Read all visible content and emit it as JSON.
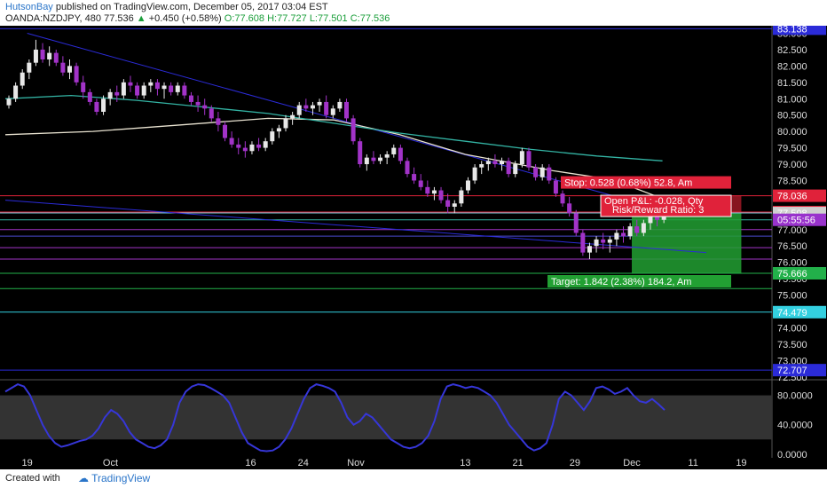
{
  "header": {
    "publisher": "HutsonBay",
    "published_text": "published on TradingView.com, December 05, 2017 03:04 EST",
    "symbol": "OANDA:NZDJPY, 480",
    "last": "77.536",
    "change": "+0.450 (+0.58%)",
    "open": "O:77.608",
    "high": "H:77.727",
    "low": "L:77.501",
    "close": "C:77.536"
  },
  "footer": {
    "created_with": "Created with",
    "brand": "TradingView"
  },
  "colors": {
    "up": "#e8e8e8",
    "down": "#a233c8",
    "stoch": "#3636d8",
    "ma_white": "#e8e2d0",
    "ma_teal": "#33b3a3"
  },
  "chart_data": {
    "type": "candlestick",
    "price_axis": {
      "ticks": [
        83.0,
        82.5,
        82.0,
        81.5,
        81.0,
        80.5,
        80.0,
        79.5,
        79.0,
        78.5,
        78.0,
        77.5,
        77.0,
        76.5,
        76.0,
        75.5,
        75.0,
        74.5,
        74.0,
        73.5,
        73.0,
        72.5
      ],
      "tick_labels": [
        "83.000",
        "82.500",
        "82.000",
        "81.500",
        "81.000",
        "80.500",
        "80.000",
        "79.500",
        "79.000",
        "78.500",
        "78.000",
        "77.500",
        "77.000",
        "76.500",
        "76.000",
        "75.500",
        "75.000",
        "74.500",
        "74.000",
        "73.500",
        "73.000",
        "72.500"
      ],
      "ylim": [
        72.44,
        83.23
      ]
    },
    "date_ticks": [
      {
        "label": "19",
        "x": 5
      },
      {
        "label": "Oct",
        "x": 24
      },
      {
        "label": "16",
        "x": 56
      },
      {
        "label": "24",
        "x": 68
      },
      {
        "label": "Nov",
        "x": 80
      },
      {
        "label": "13",
        "x": 105
      },
      {
        "label": "21",
        "x": 117
      },
      {
        "label": "29",
        "x": 130
      },
      {
        "label": "Dec",
        "x": 143
      },
      {
        "label": "11",
        "x": 157
      },
      {
        "label": "19",
        "x": 168
      }
    ],
    "xlim": [
      0,
      175
    ],
    "hlines": [
      {
        "value": 83.138,
        "label": "83.138",
        "color": "#2b2bd8",
        "label_bg": "#2b2bd8"
      },
      {
        "value": 78.036,
        "label": "78.036",
        "color": "#e0223a",
        "label_bg": "#e0223a"
      },
      {
        "value": 77.536,
        "label": "77.536",
        "color": "#e0223a",
        "label_bg": "#e0223a"
      },
      {
        "value": 77.508,
        "label": "77.508",
        "color": "#7ad0e0",
        "label_bg": "#cfcfcf"
      },
      {
        "value": 75.666,
        "label": "75.666",
        "color": "#22b04a",
        "label_bg": "#22b04a"
      },
      {
        "value": 74.479,
        "label": "74.479",
        "color": "#33d0e0",
        "label_bg": "#33d0e0"
      },
      {
        "value": 72.707,
        "label": "72.707",
        "color": "#2b2bd8",
        "label_bg": "#2b2bd8"
      }
    ],
    "extra_lines": [
      {
        "value": 77.3,
        "color": "#33b3a3"
      },
      {
        "value": 77.0,
        "color": "#a233c8"
      },
      {
        "value": 76.45,
        "color": "#a233c8"
      },
      {
        "value": 76.1,
        "color": "#a233c8"
      },
      {
        "value": 75.2,
        "color": "#22b04a"
      },
      {
        "value": 76.8,
        "color": "#4a4ad0"
      }
    ],
    "time_label": "05:55:56",
    "position": {
      "entry": 77.508,
      "stop": 78.036,
      "target": 75.666,
      "x_start": 143,
      "x_end": 168,
      "stop_text": "Stop: 0.528 (0.68%) 52.8, Am",
      "target_text": "Target: 1.842 (2.38%) 184.2, Am",
      "pnl_text": "Open P&L: -0.028, Qty",
      "rr_text": "Risk/Reward Ratio: 3"
    },
    "trendlines": [
      {
        "x1": 5,
        "y1": 83.0,
        "x2": 145,
        "y2": 77.8,
        "color": "#2b2bd8"
      },
      {
        "x1": 0,
        "y1": 77.9,
        "x2": 160,
        "y2": 76.3,
        "color": "#2b2bd8"
      }
    ],
    "moving_averages": [
      {
        "name": "",
        "color": "#e8e2d0",
        "points": [
          [
            0,
            79.9
          ],
          [
            20,
            80.0
          ],
          [
            40,
            80.2
          ],
          [
            60,
            80.4
          ],
          [
            75,
            80.35
          ],
          [
            90,
            79.9
          ],
          [
            105,
            79.3
          ],
          [
            125,
            78.8
          ],
          [
            135,
            78.6
          ],
          [
            143,
            78.3
          ],
          [
            150,
            77.95
          ]
        ]
      },
      {
        "name": "",
        "color": "#33b3a3",
        "points": [
          [
            0,
            81.0
          ],
          [
            15,
            81.1
          ],
          [
            30,
            80.95
          ],
          [
            45,
            80.75
          ],
          [
            60,
            80.55
          ],
          [
            75,
            80.25
          ],
          [
            90,
            79.95
          ],
          [
            105,
            79.7
          ],
          [
            120,
            79.45
          ],
          [
            135,
            79.25
          ],
          [
            150,
            79.1
          ]
        ]
      }
    ],
    "candles": [
      [
        0,
        80.8,
        81.1,
        80.7,
        81.0
      ],
      [
        1,
        81.0,
        81.5,
        80.9,
        81.4
      ],
      [
        2,
        81.4,
        81.9,
        81.3,
        81.8
      ],
      [
        3,
        81.8,
        82.2,
        81.6,
        82.1
      ],
      [
        4,
        82.1,
        82.8,
        82.0,
        82.5
      ],
      [
        5,
        82.5,
        82.7,
        82.1,
        82.2
      ],
      [
        6,
        82.2,
        82.6,
        82.0,
        82.4
      ],
      [
        7,
        82.4,
        82.5,
        82.0,
        82.1
      ],
      [
        8,
        82.1,
        82.3,
        81.7,
        81.8
      ],
      [
        9,
        81.8,
        82.2,
        81.6,
        82.0
      ],
      [
        10,
        82.0,
        82.1,
        81.4,
        81.5
      ],
      [
        11,
        81.5,
        81.7,
        81.0,
        81.2
      ],
      [
        12,
        81.2,
        81.3,
        80.8,
        80.9
      ],
      [
        13,
        80.9,
        81.0,
        80.5,
        80.6
      ],
      [
        14,
        80.6,
        81.1,
        80.5,
        81.0
      ],
      [
        15,
        81.0,
        81.3,
        80.8,
        81.2
      ],
      [
        16,
        81.2,
        81.4,
        80.9,
        81.1
      ],
      [
        17,
        81.1,
        81.6,
        81.0,
        81.5
      ],
      [
        18,
        81.5,
        81.7,
        81.2,
        81.4
      ],
      [
        19,
        81.4,
        81.5,
        81.0,
        81.1
      ],
      [
        20,
        81.1,
        81.5,
        81.0,
        81.4
      ],
      [
        21,
        81.4,
        81.6,
        81.2,
        81.5
      ],
      [
        22,
        81.5,
        81.6,
        81.1,
        81.3
      ],
      [
        23,
        81.3,
        81.5,
        81.0,
        81.4
      ],
      [
        24,
        81.4,
        81.5,
        81.1,
        81.2
      ],
      [
        25,
        81.2,
        81.5,
        81.1,
        81.4
      ],
      [
        26,
        81.4,
        81.5,
        81.0,
        81.1
      ],
      [
        27,
        81.1,
        81.2,
        80.8,
        80.9
      ],
      [
        28,
        80.9,
        81.1,
        80.6,
        80.8
      ],
      [
        29,
        80.8,
        81.0,
        80.5,
        80.7
      ],
      [
        30,
        80.7,
        80.8,
        80.3,
        80.4
      ],
      [
        31,
        80.4,
        80.6,
        80.0,
        80.2
      ],
      [
        32,
        80.2,
        80.3,
        79.7,
        79.8
      ],
      [
        33,
        79.8,
        80.0,
        79.5,
        79.6
      ],
      [
        34,
        79.6,
        79.8,
        79.3,
        79.5
      ],
      [
        35,
        79.5,
        79.7,
        79.2,
        79.4
      ],
      [
        36,
        79.4,
        79.7,
        79.3,
        79.6
      ],
      [
        37,
        79.6,
        79.8,
        79.4,
        79.5
      ],
      [
        38,
        79.5,
        79.8,
        79.4,
        79.7
      ],
      [
        39,
        79.7,
        80.1,
        79.6,
        80.0
      ],
      [
        40,
        80.0,
        80.2,
        79.8,
        80.1
      ],
      [
        41,
        80.1,
        80.5,
        80.0,
        80.4
      ],
      [
        42,
        80.4,
        80.6,
        80.2,
        80.5
      ],
      [
        43,
        80.5,
        80.9,
        80.4,
        80.8
      ],
      [
        44,
        80.8,
        81.0,
        80.6,
        80.7
      ],
      [
        45,
        80.7,
        80.9,
        80.5,
        80.8
      ],
      [
        46,
        80.8,
        81.0,
        80.6,
        80.9
      ],
      [
        47,
        80.9,
        81.1,
        80.4,
        80.5
      ],
      [
        48,
        80.5,
        80.8,
        80.4,
        80.7
      ],
      [
        49,
        80.7,
        81.0,
        80.6,
        80.9
      ],
      [
        50,
        80.9,
        81.0,
        80.3,
        80.4
      ],
      [
        51,
        80.4,
        80.5,
        79.6,
        79.7
      ],
      [
        52,
        79.7,
        79.8,
        78.9,
        79.0
      ],
      [
        53,
        79.0,
        79.3,
        78.8,
        79.2
      ],
      [
        54,
        79.2,
        79.4,
        79.0,
        79.1
      ],
      [
        55,
        79.1,
        79.3,
        79.0,
        79.2
      ],
      [
        56,
        79.2,
        79.4,
        79.0,
        79.3
      ],
      [
        57,
        79.3,
        79.6,
        79.2,
        79.5
      ],
      [
        58,
        79.5,
        79.6,
        79.0,
        79.1
      ],
      [
        59,
        79.1,
        79.2,
        78.6,
        78.7
      ],
      [
        60,
        78.7,
        78.9,
        78.4,
        78.5
      ],
      [
        61,
        78.5,
        78.7,
        78.2,
        78.3
      ],
      [
        62,
        78.3,
        78.5,
        78.0,
        78.1
      ],
      [
        63,
        78.1,
        78.3,
        77.9,
        78.2
      ],
      [
        64,
        78.2,
        78.3,
        77.8,
        77.9
      ],
      [
        65,
        77.9,
        78.1,
        77.5,
        77.7
      ],
      [
        66,
        77.7,
        77.9,
        77.5,
        77.8
      ],
      [
        67,
        77.8,
        78.3,
        77.7,
        78.2
      ],
      [
        68,
        78.2,
        78.6,
        78.1,
        78.5
      ],
      [
        69,
        78.5,
        79.0,
        78.4,
        78.9
      ],
      [
        70,
        78.9,
        79.1,
        78.7,
        79.0
      ],
      [
        71,
        79.0,
        79.2,
        78.8,
        79.1
      ],
      [
        72,
        79.1,
        79.3,
        78.9,
        79.0
      ],
      [
        73,
        79.0,
        79.2,
        78.8,
        79.1
      ],
      [
        74,
        79.1,
        79.2,
        78.6,
        78.7
      ],
      [
        75,
        78.7,
        79.1,
        78.6,
        79.0
      ],
      [
        76,
        79.0,
        79.5,
        78.9,
        79.4
      ],
      [
        77,
        79.4,
        79.5,
        78.8,
        78.9
      ],
      [
        78,
        78.9,
        79.0,
        78.5,
        78.6
      ],
      [
        79,
        78.6,
        79.0,
        78.5,
        78.9
      ],
      [
        80,
        78.9,
        79.0,
        78.4,
        78.5
      ],
      [
        81,
        78.5,
        78.6,
        78.0,
        78.1
      ],
      [
        82,
        78.1,
        78.2,
        77.7,
        77.8
      ],
      [
        83,
        77.8,
        78.0,
        77.4,
        77.5
      ],
      [
        84,
        77.5,
        77.6,
        76.8,
        76.9
      ],
      [
        85,
        76.9,
        77.0,
        76.2,
        76.3
      ],
      [
        86,
        76.3,
        76.6,
        76.1,
        76.5
      ],
      [
        87,
        76.5,
        76.8,
        76.3,
        76.7
      ],
      [
        88,
        76.7,
        76.9,
        76.4,
        76.6
      ],
      [
        89,
        76.6,
        76.8,
        76.3,
        76.7
      ],
      [
        90,
        76.7,
        77.0,
        76.5,
        76.9
      ],
      [
        91,
        76.9,
        77.1,
        76.6,
        76.8
      ],
      [
        92,
        76.8,
        77.2,
        76.7,
        77.1
      ],
      [
        93,
        77.1,
        77.3,
        76.8,
        76.9
      ],
      [
        94,
        76.9,
        77.3,
        76.8,
        77.2
      ],
      [
        95,
        77.2,
        77.5,
        77.0,
        77.4
      ],
      [
        96,
        77.4,
        77.6,
        77.1,
        77.3
      ],
      [
        97,
        77.3,
        77.7,
        77.2,
        77.5
      ]
    ],
    "stochastic": {
      "ticks": [
        80.0,
        40.0,
        0.0
      ],
      "tick_labels": [
        "80.0000",
        "40.0000",
        "0.0000"
      ],
      "ylim": [
        -5,
        100
      ],
      "band": [
        20,
        80
      ],
      "values": [
        85,
        90,
        95,
        92,
        80,
        60,
        40,
        25,
        15,
        10,
        12,
        15,
        18,
        20,
        25,
        35,
        50,
        60,
        55,
        45,
        30,
        20,
        15,
        10,
        8,
        12,
        20,
        40,
        70,
        85,
        92,
        95,
        94,
        90,
        85,
        80,
        70,
        50,
        30,
        15,
        10,
        5,
        4,
        5,
        10,
        20,
        35,
        55,
        75,
        90,
        95,
        93,
        90,
        85,
        70,
        50,
        40,
        45,
        55,
        50,
        40,
        30,
        20,
        15,
        10,
        8,
        10,
        15,
        25,
        45,
        75,
        92,
        95,
        93,
        90,
        92,
        90,
        85,
        80,
        70,
        55,
        40,
        30,
        20,
        10,
        5,
        8,
        15,
        40,
        75,
        85,
        80,
        70,
        60,
        72,
        90,
        92,
        88,
        82,
        85,
        90,
        80,
        72,
        70,
        75,
        68,
        60
      ]
    }
  }
}
